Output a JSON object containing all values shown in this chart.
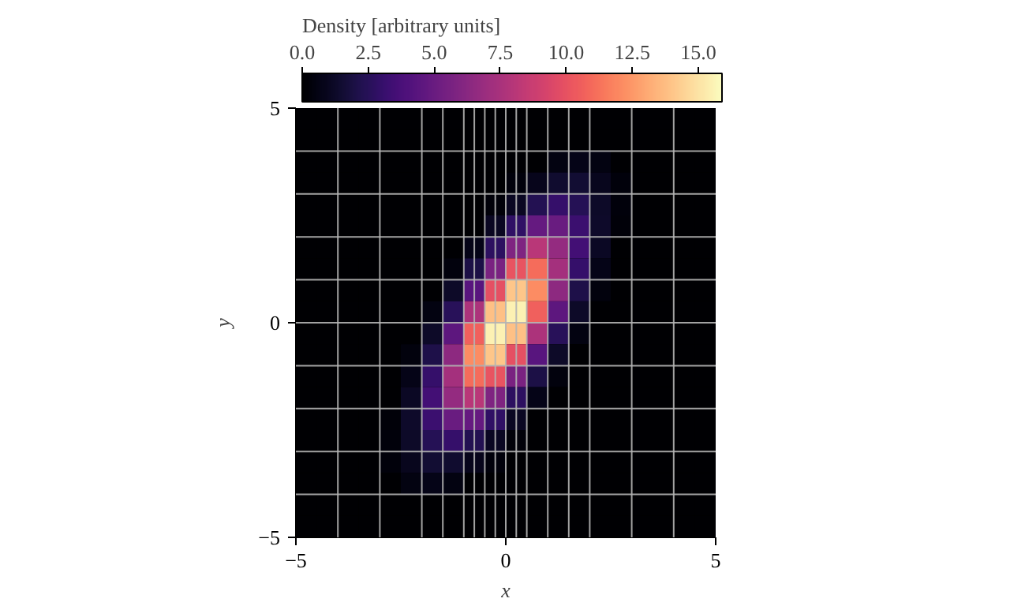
{
  "chart_data": {
    "type": "heatmap",
    "xlabel": "x",
    "ylabel": "y",
    "clabel": "Density [arbitrary units]",
    "x": [
      -4.75,
      -4.25,
      -3.75,
      -3.25,
      -2.75,
      -2.25,
      -1.75,
      -1.25,
      -0.75,
      -0.25,
      0.25,
      0.75,
      1.25,
      1.75,
      2.25,
      2.75,
      3.25,
      3.75,
      4.25,
      4.75
    ],
    "grid": true,
    "xlim": [
      -5,
      5
    ],
    "ylim": [
      -5,
      5
    ],
    "xticks": [
      {
        "value": -5,
        "label": "−5"
      },
      0,
      5
    ],
    "yticks": [
      {
        "value": -5,
        "label": "−5"
      },
      0,
      5
    ],
    "clim": [
      0,
      15.9
    ],
    "cticks": [
      {
        "value": 0,
        "label": "0.0"
      },
      2.5,
      {
        "value": 5,
        "label": "5.0"
      },
      7.5,
      {
        "value": 10,
        "label": "10.0"
      },
      12.5,
      {
        "value": 15,
        "label": "15.0"
      }
    ],
    "cells": [
      [
        0,
        0,
        0,
        0,
        0,
        0,
        0,
        0,
        0,
        0,
        0,
        0,
        0,
        0,
        0,
        0,
        0,
        0,
        0,
        0
      ],
      [
        0,
        0,
        0,
        0,
        0,
        0,
        0,
        0,
        0,
        0,
        0,
        0,
        0,
        0,
        0,
        0,
        0,
        0,
        0,
        0
      ],
      [
        0,
        0,
        0,
        0,
        0,
        0,
        0,
        0,
        0,
        0,
        0,
        0,
        0.55,
        0.7,
        0.55,
        0,
        0,
        0,
        0,
        0
      ],
      [
        0,
        0,
        0,
        0,
        0,
        0,
        0,
        0,
        0,
        0,
        0.32,
        0.86,
        1.4,
        1.5,
        0.9,
        0.34,
        0,
        0,
        0,
        0
      ],
      [
        0,
        0,
        0,
        0,
        0,
        0,
        0,
        0,
        0,
        0.3,
        1.0,
        2.3,
        3.0,
        2.4,
        1.2,
        0.36,
        0,
        0,
        0,
        0
      ],
      [
        0,
        0,
        0,
        0,
        0,
        0,
        0,
        0,
        0,
        1.0,
        2.8,
        4.8,
        5.0,
        3.2,
        1.3,
        0.3,
        0,
        0,
        0,
        0
      ],
      [
        0,
        0,
        0,
        0,
        0,
        0,
        0,
        0,
        0.73,
        2.7,
        5.9,
        8.1,
        6.7,
        3.5,
        1.1,
        0,
        0,
        0,
        0,
        0
      ],
      [
        0,
        0,
        0,
        0,
        0,
        0,
        0,
        0.42,
        2.0,
        5.7,
        10.1,
        11.0,
        7.3,
        3.0,
        0.74,
        0,
        0,
        0,
        0,
        0
      ],
      [
        0,
        0,
        0,
        0,
        0,
        0,
        0,
        1.2,
        4.3,
        9.9,
        14.0,
        12.1,
        6.4,
        2.1,
        0.41,
        0,
        0,
        0,
        0,
        0
      ],
      [
        0,
        0,
        0,
        0,
        0,
        0,
        0.52,
        2.5,
        7.6,
        13.8,
        15.5,
        10.6,
        4.5,
        1.2,
        0,
        0,
        0,
        0,
        0,
        0
      ],
      [
        0,
        0,
        0,
        0,
        0,
        0,
        1.2,
        4.5,
        10.6,
        15.5,
        13.8,
        7.6,
        2.5,
        0.52,
        0,
        0,
        0,
        0,
        0,
        0
      ],
      [
        0,
        0,
        0,
        0,
        0,
        0.41,
        2.1,
        6.4,
        12.1,
        14.0,
        9.9,
        4.3,
        1.2,
        0,
        0,
        0,
        0,
        0,
        0,
        0
      ],
      [
        0,
        0,
        0,
        0,
        0,
        0.74,
        3.0,
        7.3,
        11.0,
        10.1,
        5.7,
        2.0,
        0.42,
        0,
        0,
        0,
        0,
        0,
        0,
        0
      ],
      [
        0,
        0,
        0,
        0,
        0,
        1.1,
        3.5,
        6.7,
        8.1,
        5.9,
        2.7,
        0.73,
        0,
        0,
        0,
        0,
        0,
        0,
        0,
        0
      ],
      [
        0,
        0,
        0,
        0,
        0.3,
        1.3,
        3.2,
        5.0,
        4.8,
        2.8,
        1.0,
        0,
        0,
        0,
        0,
        0,
        0,
        0,
        0,
        0
      ],
      [
        0,
        0,
        0,
        0,
        0.36,
        1.2,
        2.4,
        3.0,
        2.3,
        1.0,
        0.3,
        0,
        0,
        0,
        0,
        0,
        0,
        0,
        0,
        0
      ],
      [
        0,
        0,
        0,
        0,
        0.34,
        0.9,
        1.5,
        1.4,
        0.86,
        0.32,
        0,
        0,
        0,
        0,
        0,
        0,
        0,
        0,
        0,
        0
      ],
      [
        0,
        0,
        0,
        0,
        0,
        0.55,
        0.7,
        0.55,
        0,
        0,
        0,
        0,
        0,
        0,
        0,
        0,
        0,
        0,
        0,
        0
      ],
      [
        0,
        0,
        0,
        0,
        0,
        0,
        0,
        0,
        0,
        0,
        0,
        0,
        0,
        0,
        0,
        0,
        0,
        0,
        0,
        0
      ],
      [
        0,
        0,
        0,
        0,
        0,
        0,
        0,
        0,
        0,
        0,
        0,
        0,
        0,
        0,
        0,
        0,
        0,
        0,
        0,
        0
      ]
    ],
    "ref_lines": [
      {
        "axis": "x",
        "value": -4,
        "color": "#b4b4b4"
      },
      {
        "axis": "x",
        "value": -3,
        "color": "#b4b4b4"
      },
      {
        "axis": "x",
        "value": -2,
        "color": "#b4b4b4"
      },
      {
        "axis": "x",
        "value": -1.5,
        "color": "#b4b4b4"
      },
      {
        "axis": "x",
        "value": -1,
        "color": "#b4b4b4"
      },
      {
        "axis": "x",
        "value": -0.75,
        "color": "#b4b4b4"
      },
      {
        "axis": "x",
        "value": -0.5,
        "color": "#b4b4b4"
      },
      {
        "axis": "x",
        "value": -0.25,
        "color": "#b4b4b4"
      },
      {
        "axis": "x",
        "value": 0.25,
        "color": "#b4b4b4"
      },
      {
        "axis": "x",
        "value": 0.5,
        "color": "#b4b4b4"
      },
      {
        "axis": "x",
        "value": 1,
        "color": "#b4b4b4"
      },
      {
        "axis": "x",
        "value": 1.5,
        "color": "#b4b4b4"
      },
      {
        "axis": "x",
        "value": 2,
        "color": "#b4b4b4"
      },
      {
        "axis": "x",
        "value": 3,
        "color": "#b4b4b4"
      },
      {
        "axis": "x",
        "value": 4,
        "color": "#b4b4b4"
      },
      {
        "axis": "y",
        "value": -4,
        "color": "#b4b4b4"
      },
      {
        "axis": "y",
        "value": -3,
        "color": "#b4b4b4"
      },
      {
        "axis": "y",
        "value": -2,
        "color": "#b4b4b4"
      },
      {
        "axis": "y",
        "value": -1,
        "color": "#b4b4b4"
      },
      {
        "axis": "y",
        "value": 1,
        "color": "#b4b4b4"
      },
      {
        "axis": "y",
        "value": 2,
        "color": "#b4b4b4"
      },
      {
        "axis": "y",
        "value": 3,
        "color": "#b4b4b4"
      },
      {
        "axis": "y",
        "value": 4,
        "color": "#b4b4b4"
      }
    ]
  }
}
